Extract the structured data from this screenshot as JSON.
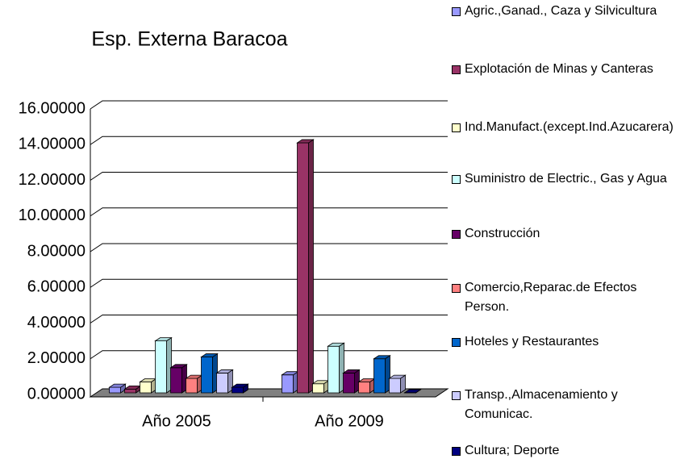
{
  "chart_data": {
    "type": "bar3d",
    "title": "Esp. Externa Baracoa",
    "categories": [
      "Año 2005",
      "Año 2009"
    ],
    "series": [
      {
        "name": "Agric.,Ganad., Caza y Silvicultura",
        "color": "#9999ff",
        "values": [
          0.4,
          1.1
        ]
      },
      {
        "name": "Explotación de Minas y Canteras",
        "color": "#993366",
        "values": [
          0.3,
          14.1
        ]
      },
      {
        "name": "Ind.Manufact.(except.Ind.Azucarera)",
        "color": "#ffffcc",
        "values": [
          0.7,
          0.6
        ]
      },
      {
        "name": "Suministro de Electric., Gas y Agua",
        "color": "#ccffff",
        "values": [
          3.0,
          2.7
        ]
      },
      {
        "name": "Construcción",
        "color": "#660066",
        "values": [
          1.5,
          1.2
        ]
      },
      {
        "name": "Comercio,Reparac.de Efectos Person.",
        "color": "#ff8080",
        "values": [
          0.9,
          0.7
        ]
      },
      {
        "name": "Hoteles y Restaurantes",
        "color": "#0066cc",
        "values": [
          2.1,
          2.0
        ]
      },
      {
        "name": "Transp.,Almacenamiento y Comunicac.",
        "color": "#ccccff",
        "values": [
          1.2,
          0.9
        ]
      },
      {
        "name": "Cultura; Deporte",
        "color": "#000080",
        "values": [
          0.4,
          0.1
        ]
      }
    ],
    "ylim": [
      0,
      16
    ],
    "yticks": [
      {
        "value": 0,
        "label": "0.00000"
      },
      {
        "value": 2,
        "label": "2.00000"
      },
      {
        "value": 4,
        "label": "4.00000"
      },
      {
        "value": 6,
        "label": "6.00000"
      },
      {
        "value": 8,
        "label": "8.00000"
      },
      {
        "value": 10,
        "label": "10.00000"
      },
      {
        "value": 12,
        "label": "12.00000"
      },
      {
        "value": 14,
        "label": "14.00000"
      },
      {
        "value": 16,
        "label": "16.00000"
      }
    ],
    "grid": true,
    "legend": "right"
  }
}
